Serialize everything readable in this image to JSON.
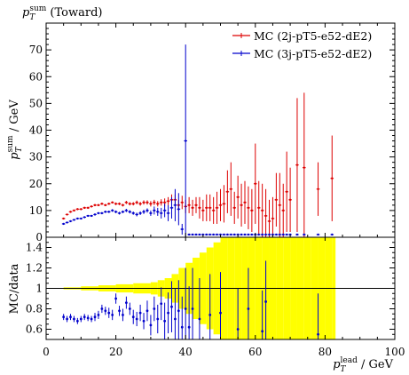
{
  "header": {
    "title_sym": "p",
    "title_sub": "T",
    "title_sup": "sum",
    "title_rest": " (Toward)"
  },
  "main_ylabel": {
    "sym": "p",
    "sub": "T",
    "sup": "sum",
    "rest": " / GeV"
  },
  "ratio_ylabel": "MC/data",
  "xlabel": {
    "sym": "p",
    "sub": "T",
    "sup": "lead",
    "rest": " / GeV"
  },
  "colors": {
    "red": "#dd0000",
    "blue": "#0000cc",
    "band": "#ffff00",
    "ref": "#000000"
  },
  "chart_data": {
    "type": "scatter",
    "x_range": [
      0,
      100
    ],
    "y_range": [
      0,
      80
    ],
    "ratio_range": [
      0.5,
      1.5
    ],
    "x_ticks": [
      0,
      20,
      40,
      60,
      80,
      100
    ],
    "y_ticks": [
      0,
      10,
      20,
      30,
      40,
      50,
      60,
      70
    ],
    "ratio_ticks": [
      0.6,
      0.8,
      1.0,
      1.2,
      1.4
    ],
    "ratio_tick_labels": [
      "0.6",
      "0.8",
      "1",
      "1.2",
      "1.4"
    ],
    "legend_position": "top-right",
    "series": [
      {
        "name": "MC (2j-pT5-e52-dE2)",
        "color": "red",
        "x": [
          5,
          6,
          7,
          8,
          9,
          10,
          11,
          12,
          13,
          14,
          15,
          16,
          17,
          18,
          19,
          20,
          21,
          22,
          23,
          24,
          25,
          26,
          27,
          28,
          29,
          30,
          31,
          32,
          33,
          34,
          35,
          36,
          37,
          38,
          39,
          40,
          41,
          42,
          43,
          44,
          45,
          46,
          47,
          48,
          49,
          50,
          51,
          52,
          53,
          54,
          55,
          56,
          57,
          58,
          59,
          60,
          61,
          62,
          63,
          64,
          65,
          66,
          67,
          68,
          69,
          70,
          72,
          74,
          78,
          82
        ],
        "y": [
          7,
          8.5,
          9.5,
          10,
          10.5,
          10.5,
          11,
          11,
          11.5,
          12,
          12,
          12.5,
          12,
          12.5,
          13,
          12.5,
          12.5,
          12,
          13,
          12.5,
          12.5,
          13,
          12.5,
          13,
          13,
          12.5,
          13,
          12.5,
          13,
          13,
          13.5,
          14,
          14,
          12,
          13,
          11.5,
          12,
          11,
          12,
          11,
          10,
          11,
          11,
          10,
          11,
          12,
          12.5,
          17,
          18,
          11,
          15,
          12,
          13,
          11,
          10,
          20,
          11,
          10,
          8,
          6,
          7,
          14,
          12,
          10,
          17,
          14,
          27,
          26,
          18,
          22
        ],
        "err": [
          0.3,
          0.3,
          0.3,
          0.3,
          0.3,
          0.3,
          0.3,
          0.3,
          0.3,
          0.4,
          0.4,
          0.4,
          0.4,
          0.4,
          0.4,
          0.5,
          0.5,
          0.5,
          0.6,
          0.6,
          0.6,
          0.7,
          0.7,
          0.8,
          0.8,
          1,
          1,
          1,
          1.2,
          1.5,
          1.5,
          2,
          2,
          2,
          2.5,
          2.5,
          3,
          3,
          3,
          4,
          4,
          5,
          5,
          5,
          6,
          6,
          7,
          8,
          10,
          6,
          8,
          8,
          8,
          8,
          8,
          15,
          10,
          10,
          10,
          8,
          8,
          10,
          12,
          10,
          15,
          12,
          25,
          28,
          10,
          16
        ],
        "ratio_x": [
          5,
          6,
          7,
          8,
          9,
          10,
          11,
          12,
          13,
          14,
          15,
          16,
          17,
          18,
          19,
          20,
          21,
          22,
          23,
          24,
          25,
          26,
          27,
          28,
          29,
          30,
          31,
          32,
          33,
          34,
          35,
          36,
          37,
          38,
          39,
          40,
          41,
          42,
          43,
          44,
          45,
          46,
          47,
          48,
          49,
          50,
          51,
          52,
          53,
          54,
          55,
          56,
          57,
          58,
          59,
          60,
          61,
          62,
          63,
          64,
          65,
          66,
          67,
          68,
          69,
          70,
          72,
          74,
          78,
          82
        ],
        "ratio_y": [
          1,
          1,
          1,
          1,
          1,
          1,
          1,
          1,
          1,
          1,
          1,
          1,
          1,
          1,
          1,
          1,
          1,
          1,
          1,
          1,
          1,
          1,
          1,
          1,
          1,
          1,
          1,
          1,
          1,
          1,
          1,
          1,
          1,
          1,
          1,
          1,
          1,
          1,
          1,
          1,
          1,
          1,
          1,
          1,
          1,
          1,
          1,
          1,
          1,
          1,
          1,
          1,
          1,
          1,
          1,
          1,
          1,
          1,
          1,
          1,
          1,
          1,
          1,
          1,
          1,
          1,
          1,
          1,
          1,
          1
        ]
      },
      {
        "name": "MC (3j-pT5-e52-dE2)",
        "color": "blue",
        "x": [
          5,
          6,
          7,
          8,
          9,
          10,
          11,
          12,
          13,
          14,
          15,
          16,
          17,
          18,
          19,
          20,
          21,
          22,
          23,
          24,
          25,
          26,
          27,
          28,
          29,
          30,
          31,
          32,
          33,
          34,
          35,
          36,
          37,
          38,
          39,
          40,
          41,
          42,
          43,
          44,
          45,
          46,
          47,
          48,
          49,
          50,
          51,
          52,
          53,
          54,
          55,
          56,
          57,
          58,
          59,
          60,
          61,
          62,
          63,
          64,
          65,
          66,
          67,
          68,
          69,
          70,
          72,
          74,
          78,
          82
        ],
        "y": [
          5,
          5.5,
          6,
          6.5,
          7,
          7,
          7.5,
          8,
          8,
          8.5,
          9,
          9,
          9.5,
          9.5,
          10,
          9.5,
          9,
          9.5,
          10,
          9.5,
          9,
          8.5,
          9,
          9.5,
          10,
          9,
          10,
          9.5,
          9,
          10,
          9,
          11,
          12,
          10.5,
          3,
          36,
          1,
          1,
          1,
          1,
          1,
          1,
          1,
          1,
          1,
          1,
          1,
          1,
          1,
          1,
          1,
          1,
          1,
          1,
          1,
          1,
          1,
          1,
          1,
          1,
          1,
          1,
          1,
          1,
          1,
          1,
          1,
          1,
          1,
          1
        ],
        "err": [
          0.3,
          0.3,
          0.3,
          0.3,
          0.3,
          0.3,
          0.3,
          0.3,
          0.3,
          0.4,
          0.4,
          0.4,
          0.4,
          0.4,
          0.5,
          0.5,
          0.5,
          0.5,
          0.6,
          0.6,
          0.6,
          0.7,
          0.7,
          0.8,
          0.8,
          1,
          1.5,
          1.5,
          2,
          2.5,
          3,
          4,
          6,
          6,
          2,
          36,
          0,
          0,
          0,
          0,
          0,
          0,
          0,
          0,
          0,
          0,
          0,
          0,
          0,
          0,
          0,
          0,
          0,
          0,
          0,
          0,
          0,
          0,
          0,
          0,
          0,
          0,
          0,
          0,
          0,
          0,
          0,
          0,
          0,
          0
        ],
        "ratio_x": [
          5,
          6,
          7,
          8,
          9,
          10,
          11,
          12,
          13,
          14,
          15,
          16,
          17,
          18,
          19,
          20,
          21,
          22,
          23,
          24,
          25,
          26,
          27,
          28,
          29,
          30,
          31,
          32,
          33,
          34,
          35,
          36,
          37,
          38,
          39,
          40,
          41,
          42,
          44,
          47,
          50,
          55,
          58,
          62,
          63,
          78
        ],
        "ratio_y": [
          0.72,
          0.7,
          0.72,
          0.7,
          0.68,
          0.7,
          0.72,
          0.71,
          0.7,
          0.72,
          0.74,
          0.8,
          0.78,
          0.76,
          0.74,
          0.9,
          0.78,
          0.74,
          0.86,
          0.8,
          0.72,
          0.7,
          0.76,
          0.68,
          0.78,
          0.64,
          0.8,
          0.7,
          0.85,
          0.68,
          0.76,
          0.82,
          0.7,
          0.78,
          0.62,
          0.8,
          0.62,
          0.8,
          0.7,
          0.74,
          0.76,
          0.6,
          0.8,
          0.58,
          0.87,
          0.55
        ],
        "ratio_err": [
          0.03,
          0.03,
          0.03,
          0.03,
          0.03,
          0.03,
          0.03,
          0.03,
          0.03,
          0.04,
          0.04,
          0.04,
          0.04,
          0.05,
          0.05,
          0.05,
          0.05,
          0.06,
          0.06,
          0.06,
          0.07,
          0.07,
          0.08,
          0.08,
          0.1,
          0.1,
          0.12,
          0.14,
          0.16,
          0.18,
          0.2,
          0.25,
          0.3,
          0.3,
          0.3,
          0.4,
          0.4,
          0.4,
          0.4,
          0.4,
          0.4,
          0.4,
          0.4,
          0.4,
          0.4,
          0.4
        ]
      }
    ],
    "band": {
      "x": [
        5,
        10,
        15,
        20,
        25,
        30,
        32,
        34,
        36,
        38,
        40,
        42,
        44,
        46,
        48,
        50,
        52,
        54,
        56,
        58,
        60,
        62,
        64,
        66,
        68,
        70,
        72,
        74,
        76,
        78,
        80,
        82
      ],
      "halfw": [
        0.01,
        0.02,
        0.03,
        0.04,
        0.05,
        0.06,
        0.08,
        0.1,
        0.14,
        0.2,
        0.25,
        0.3,
        0.35,
        0.4,
        0.45,
        0.5,
        0.5,
        0.5,
        0.5,
        0.5,
        0.5,
        0.5,
        0.5,
        0.5,
        0.5,
        0.5,
        0.5,
        0.5,
        0.5,
        0.5,
        0.5,
        0.5
      ]
    }
  }
}
